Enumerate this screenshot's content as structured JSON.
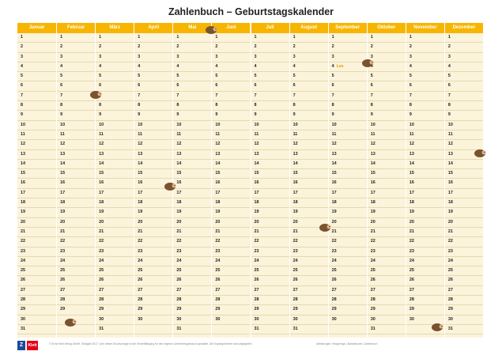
{
  "title": "Zahlenbuch – Geburtstagskalender",
  "months": [
    {
      "name": "Januar",
      "days": 31
    },
    {
      "name": "Februar",
      "days": 29
    },
    {
      "name": "März",
      "days": 31
    },
    {
      "name": "April",
      "days": 30
    },
    {
      "name": "Mai",
      "days": 31
    },
    {
      "name": "Juni",
      "days": 30
    },
    {
      "name": "Juli",
      "days": 31
    },
    {
      "name": "August",
      "days": 31
    },
    {
      "name": "September",
      "days": 30
    },
    {
      "name": "Oktober",
      "days": 31
    },
    {
      "name": "November",
      "days": 30
    },
    {
      "name": "Dezember",
      "days": 31
    }
  ],
  "entries": [
    {
      "month": 9,
      "day": 4,
      "text": "Lea"
    }
  ],
  "footer_left": "© Ernst Klett Verlag GmbH, Stuttgart 2017 | Von dieser Druckvorlage ist die Vervielfältigung für den eigenen Unterrichtsgebrauch gestattet. Die Kopiergebühren sind abgegolten.",
  "footer_right": "Abbildungen: Hedgehogs | Illustrationen: Zahlenbuch",
  "logo": {
    "mark": "Z",
    "text": "Klett"
  },
  "colors": {
    "header": "#f7b500",
    "background": "#fbf3da",
    "entry": "#e8a100"
  },
  "icons": [
    "hedgehog-icon"
  ]
}
